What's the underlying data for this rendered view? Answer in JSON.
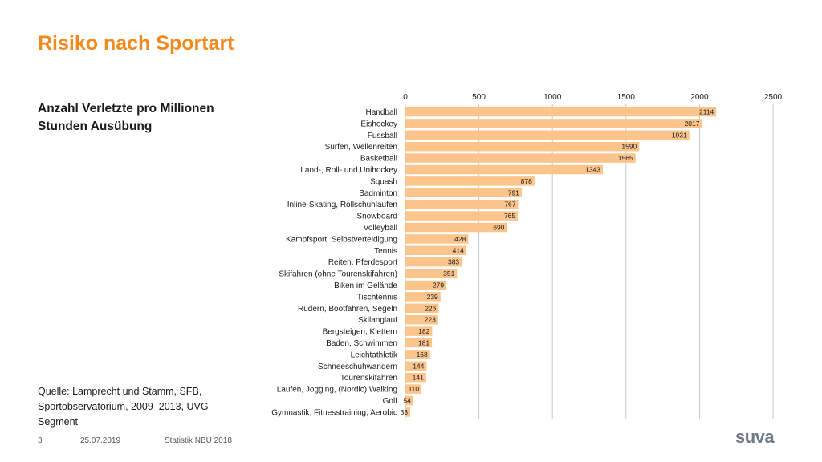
{
  "title": "Risiko nach Sportart",
  "subtitle": "Anzahl Verletzte pro Millionen Stunden Ausübung",
  "source": "Quelle: Lamprecht und Stamm, SFB, Sportobservatorium, 2009–2013, UVG Segment",
  "footer": {
    "page": "3",
    "date": "25.07.2019",
    "report": "Statistik NBU 2018"
  },
  "logo": "suva",
  "colors": {
    "bar": "#fbc48a",
    "title": "#f08a1c",
    "grid": "#c8c8c8"
  },
  "chart_data": {
    "type": "bar",
    "orientation": "horizontal",
    "title": "",
    "xlabel": "",
    "ylabel": "",
    "xlim": [
      0,
      2500
    ],
    "ticks": [
      0,
      500,
      1000,
      1500,
      2000,
      2500
    ],
    "tick_labels": [
      "0",
      "500",
      "1000",
      "1500",
      "2000",
      "2500"
    ],
    "axis_position": "top",
    "grid": true,
    "categories": [
      "Handball",
      "Eishockey",
      "Fussball",
      "Surfen, Wellenreiten",
      "Basketball",
      "Land-, Roll- und Unihockey",
      "Squash",
      "Badminton",
      "Inline-Skating, Rollschuhlaufen",
      "Snowboard",
      "Volleyball",
      "Kampfsport, Selbstverteidigung",
      "Tennis",
      "Reiten, Pferdesport",
      "Skifahren (ohne Tourenskifahren)",
      "Biken im Gelände",
      "Tischtennis",
      "Rudern, Bootfahren, Segeln",
      "Skilanglauf",
      "Bergsteigen, Klettern",
      "Baden, Schwimmen",
      "Leichtathletik",
      "Schneeschuhwandern",
      "Tourenskifahren",
      "Laufen, Jogging, (Nordic) Walking",
      "Golf",
      "Gymnastik, Fitnesstraining, Aerobic"
    ],
    "values": [
      2114,
      2017,
      1931,
      1590,
      1565,
      1343,
      878,
      791,
      767,
      765,
      690,
      428,
      414,
      383,
      351,
      279,
      239,
      226,
      223,
      182,
      181,
      168,
      144,
      141,
      110,
      54,
      33
    ],
    "value_labels": [
      "2114",
      "2017",
      "1931",
      "1590",
      "1565",
      "1343",
      "878",
      "791",
      "767",
      "765",
      "690",
      "428",
      "414",
      "383",
      "351",
      "279",
      "239",
      "226",
      "223",
      "182",
      "181",
      "168",
      "144",
      "141",
      "110",
      "54",
      "33"
    ]
  }
}
